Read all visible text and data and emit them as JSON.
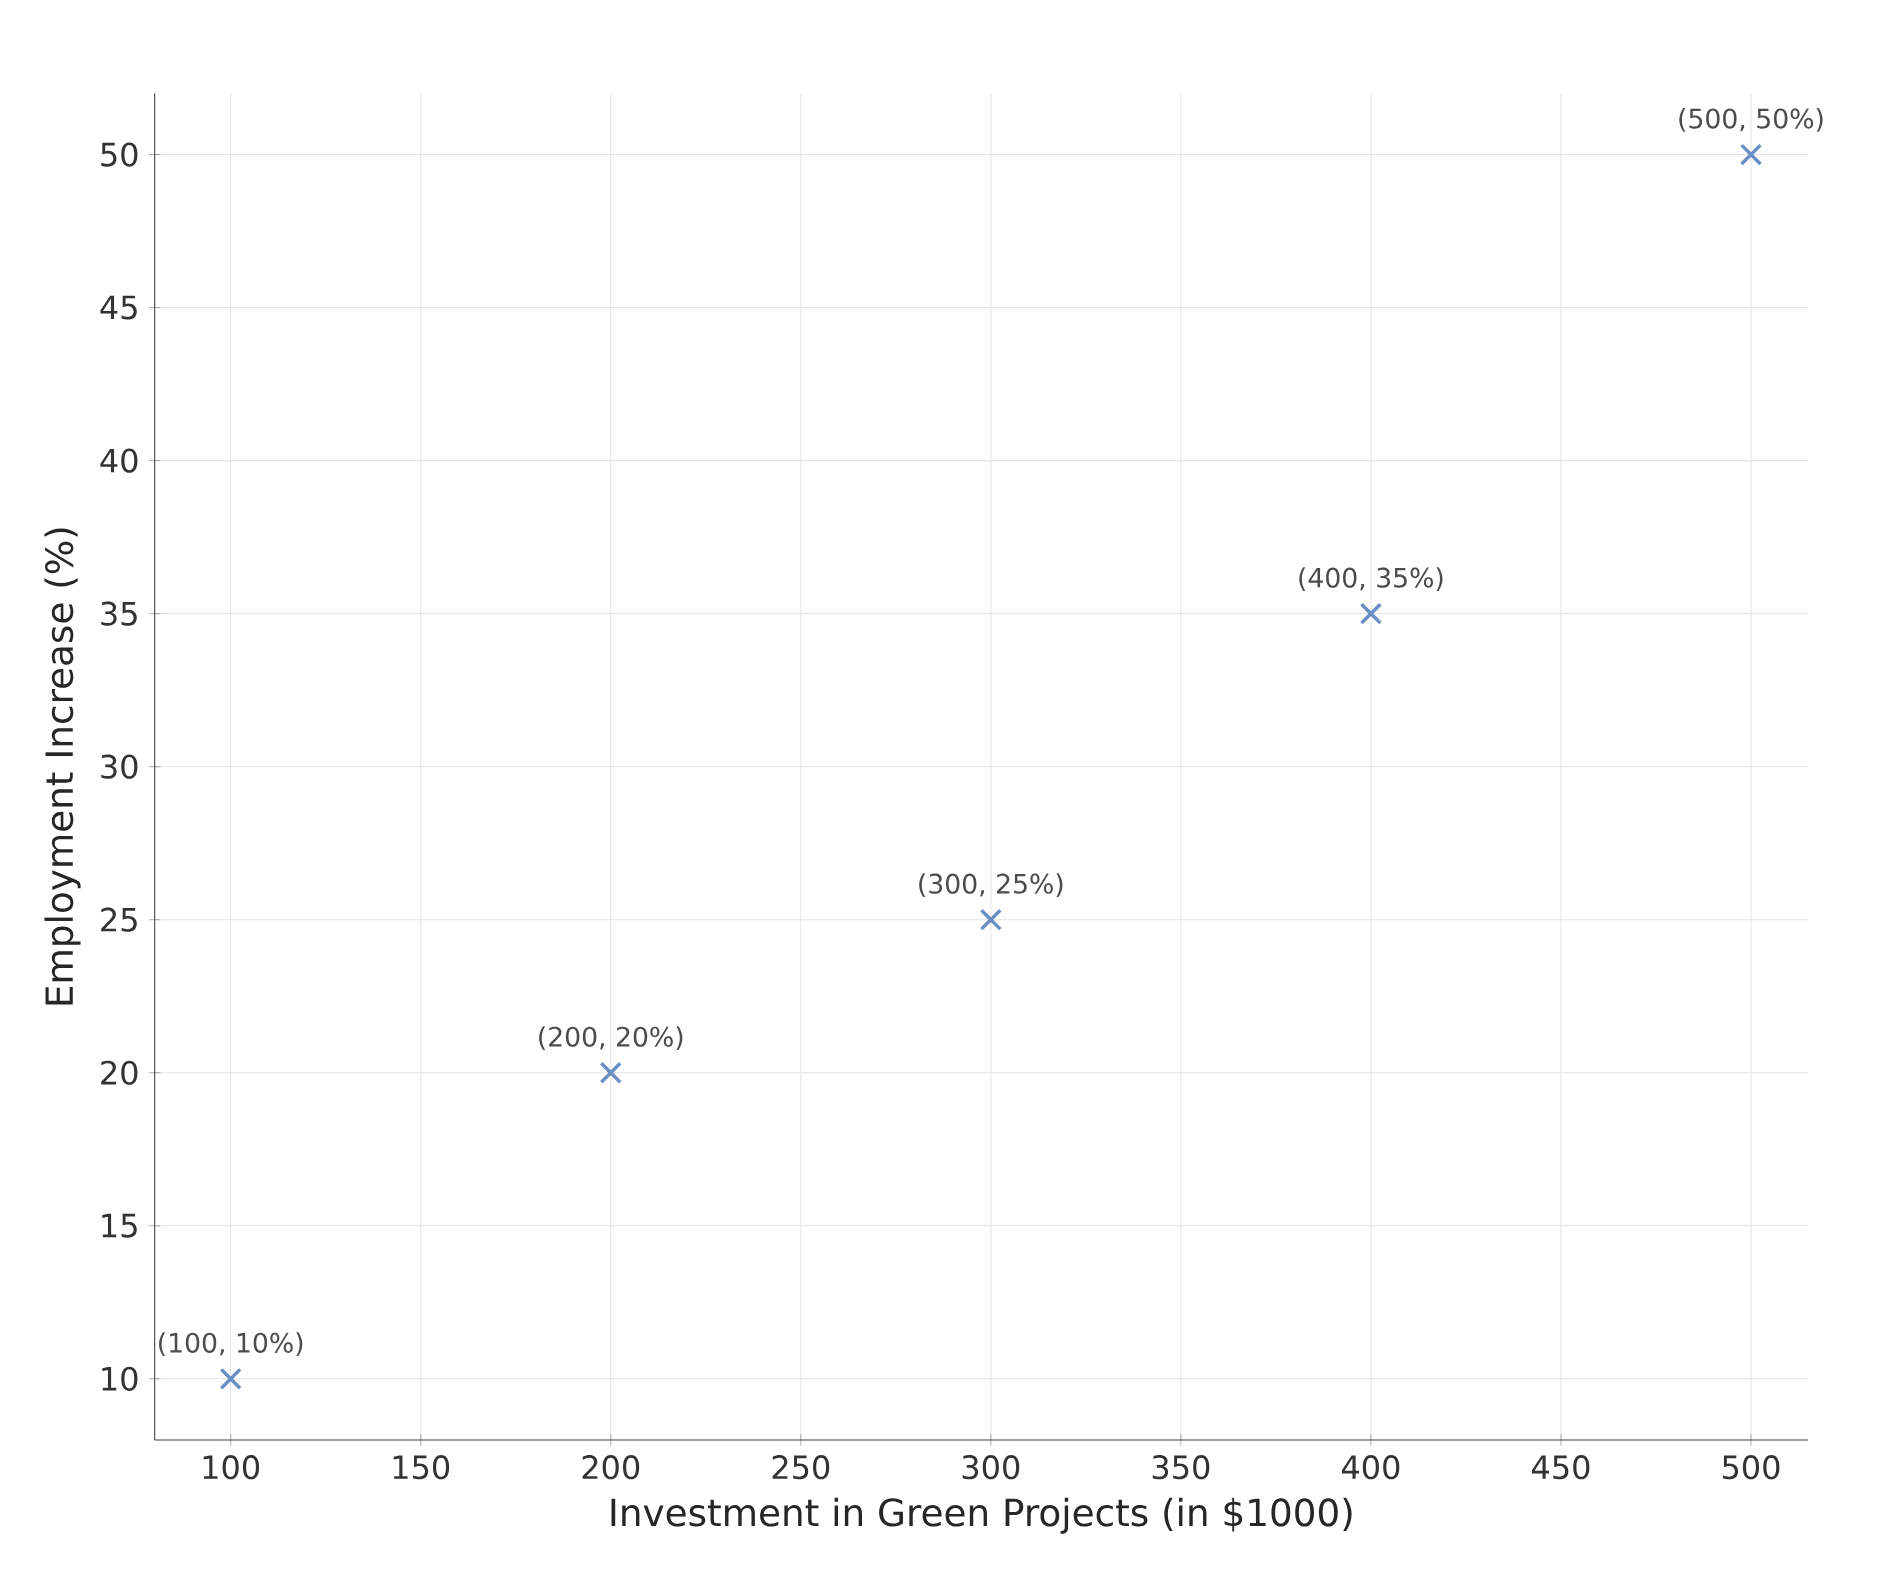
{
  "chart_data": {
    "type": "scatter",
    "xlabel": "Investment in Green Projects (in $1000)",
    "ylabel": "Employment Increase (%)",
    "x": [
      100,
      200,
      300,
      400,
      500
    ],
    "values": [
      10,
      20,
      25,
      35,
      50
    ],
    "color": "#6a8fc7",
    "marker": "cross",
    "xlim": [
      80,
      515
    ],
    "ylim": [
      8,
      52
    ],
    "xticks": [
      100,
      150,
      200,
      250,
      300,
      350,
      400,
      450,
      500
    ],
    "yticks": [
      10,
      15,
      20,
      25,
      30,
      35,
      40,
      45,
      50
    ],
    "grid": true,
    "annotations": [
      {
        "text": "(100, 10%)",
        "x": 100,
        "y": 10
      },
      {
        "text": "(200, 20%)",
        "x": 200,
        "y": 20
      },
      {
        "text": "(300, 25%)",
        "x": 300,
        "y": 25
      },
      {
        "text": "(400, 35%)",
        "x": 400,
        "y": 35
      },
      {
        "text": "(500, 50%)",
        "x": 500,
        "y": 50
      }
    ]
  }
}
